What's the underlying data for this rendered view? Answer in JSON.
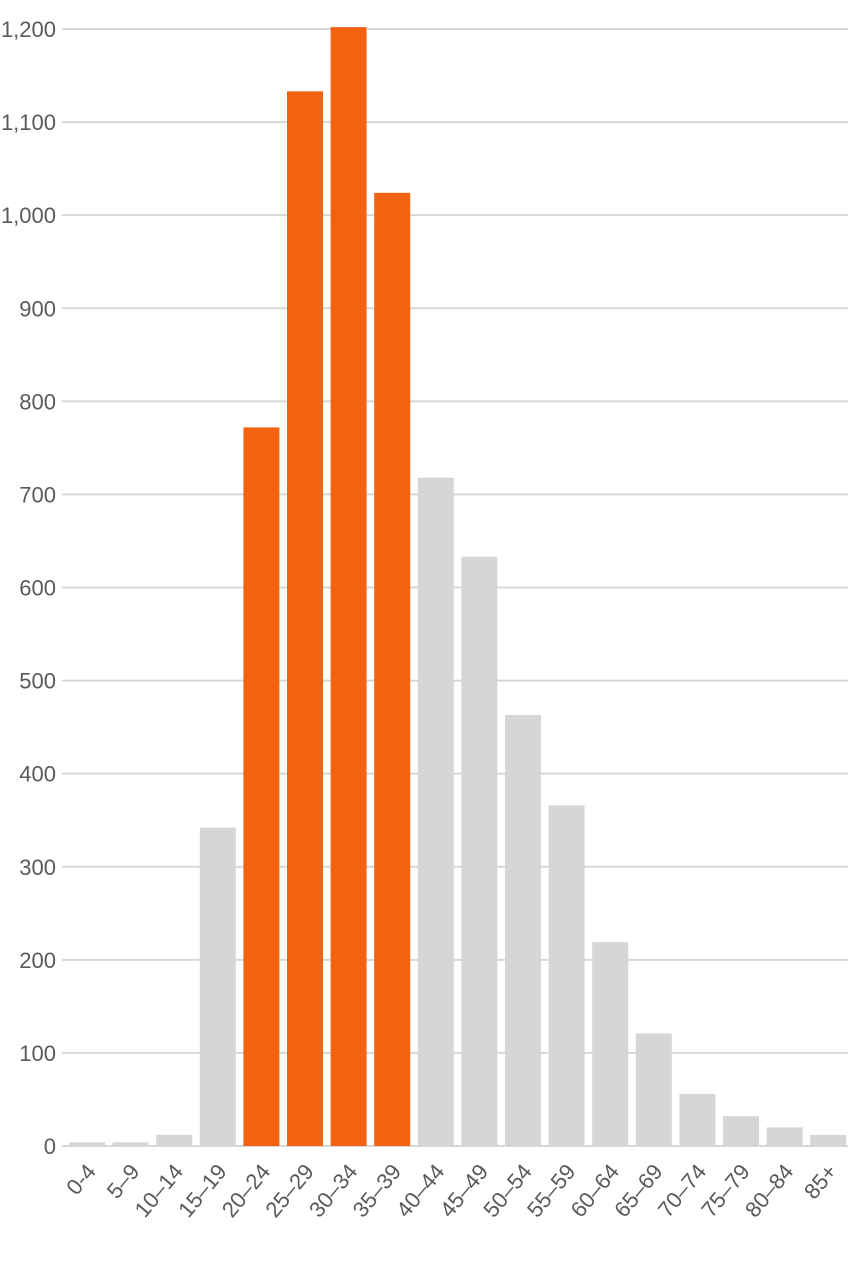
{
  "chart_data": {
    "type": "bar",
    "title": "",
    "xlabel": "",
    "ylabel": "",
    "ylim": [
      0,
      1200
    ],
    "yticks": [
      0,
      100,
      200,
      300,
      400,
      500,
      600,
      700,
      800,
      900,
      1000,
      1100,
      1200
    ],
    "ytick_labels": [
      "0",
      "100",
      "200",
      "300",
      "400",
      "500",
      "600",
      "700",
      "800",
      "900",
      "1,000",
      "1,100",
      "1,200"
    ],
    "grid": true,
    "categories": [
      "0-4",
      "5–9",
      "10–14",
      "15–19",
      "20–24",
      "25–29",
      "30–34",
      "35–39",
      "40–44",
      "45–49",
      "50–54",
      "55–59",
      "60–64",
      "65–69",
      "70–74",
      "75–79",
      "80–84",
      "85+"
    ],
    "values": [
      4,
      4,
      12,
      342,
      772,
      1133,
      1202,
      1024,
      718,
      633,
      463,
      366,
      219,
      121,
      56,
      32,
      20,
      12
    ],
    "highlighted": [
      false,
      false,
      false,
      false,
      true,
      true,
      true,
      true,
      false,
      false,
      false,
      false,
      false,
      false,
      false,
      false,
      false,
      false
    ],
    "colors": {
      "highlight": "#f26210",
      "base": "#d6d6d6",
      "grid": "#d7d7d7",
      "text": "#5a5a5a"
    }
  }
}
